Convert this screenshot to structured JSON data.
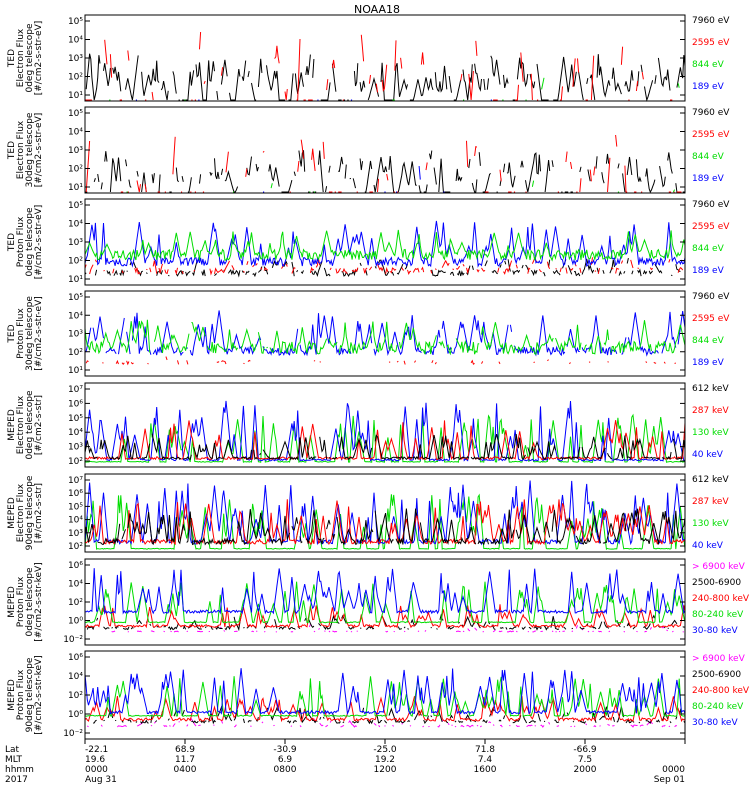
{
  "title": "NOAA18",
  "colors": {
    "black": "#000000",
    "red": "#ff0000",
    "green": "#00dd00",
    "blue": "#0000ff",
    "magenta": "#ff00ff"
  },
  "chart_data": [
    {
      "type": "line",
      "ylabel": [
        "TED",
        "Electron Flux",
        "0deg telescope",
        "[#/cm2-s-str-eV]"
      ],
      "y_ticks": [
        "10¹",
        "10²",
        "10³",
        "10⁴",
        "10⁵"
      ],
      "y_exponents": [
        1,
        5
      ],
      "legend": [
        {
          "label": "7960 eV",
          "color": "#000000"
        },
        {
          "label": "2595 eV",
          "color": "#ff0000"
        },
        {
          "label": "844 eV",
          "color": "#00dd00"
        },
        {
          "label": "189 eV",
          "color": "#0000ff"
        }
      ],
      "series": [
        {
          "color": "#000000",
          "baseline": 1.0,
          "noise": 0.0,
          "spike_count": 130,
          "spike_max": 2.2,
          "gap_fraction": 0.15
        },
        {
          "color": "#ff0000",
          "baseline": 1.0,
          "noise": 0.0,
          "spike_count": 80,
          "spike_max": 3.4,
          "gap_fraction": 0.6
        },
        {
          "color": "#00dd00",
          "baseline": 1.0,
          "noise": 0.0,
          "spike_count": 25,
          "spike_max": 1.5,
          "gap_fraction": 0.85
        },
        {
          "color": "#0000ff",
          "baseline": 1.0,
          "noise": 0.0,
          "spike_count": 12,
          "spike_max": 1.2,
          "gap_fraction": 0.9
        }
      ]
    },
    {
      "type": "line",
      "ylabel": [
        "TED",
        "Electron Flux",
        "30deg telescope",
        "[#/cm2-s-str-eV]"
      ],
      "y_ticks": [
        "10¹",
        "10²",
        "10³",
        "10⁴",
        "10⁵"
      ],
      "y_exponents": [
        1,
        5
      ],
      "legend": [
        {
          "label": "7960 eV",
          "color": "#000000"
        },
        {
          "label": "2595 eV",
          "color": "#ff0000"
        },
        {
          "label": "844 eV",
          "color": "#00dd00"
        },
        {
          "label": "189 eV",
          "color": "#0000ff"
        }
      ],
      "series": [
        {
          "color": "#000000",
          "baseline": 1.0,
          "noise": 0.0,
          "spike_count": 110,
          "spike_max": 2.0,
          "gap_fraction": 0.3
        },
        {
          "color": "#ff0000",
          "baseline": 1.0,
          "noise": 0.0,
          "spike_count": 70,
          "spike_max": 2.8,
          "gap_fraction": 0.6
        },
        {
          "color": "#00dd00",
          "baseline": 1.0,
          "noise": 0.0,
          "spike_count": 20,
          "spike_max": 1.3,
          "gap_fraction": 0.9
        },
        {
          "color": "#0000ff",
          "baseline": 1.0,
          "noise": 0.0,
          "spike_count": 15,
          "spike_max": 1.5,
          "gap_fraction": 0.9
        }
      ]
    },
    {
      "type": "line",
      "ylabel": [
        "TED",
        "Proton Flux",
        "0deg telescope",
        "[#/cm2-s-str-eV]"
      ],
      "y_ticks": [
        "10¹",
        "10²",
        "10³",
        "10⁴",
        "10⁵"
      ],
      "y_exponents": [
        1,
        5
      ],
      "legend": [
        {
          "label": "7960 eV",
          "color": "#000000"
        },
        {
          "label": "2595 eV",
          "color": "#ff0000"
        },
        {
          "label": "844 eV",
          "color": "#00dd00"
        },
        {
          "label": "189 eV",
          "color": "#0000ff"
        }
      ],
      "series": [
        {
          "color": "#000000",
          "baseline": 1.5,
          "noise": 0.3,
          "spike_count": 40,
          "spike_max": 0.8,
          "gap_fraction": 0.3
        },
        {
          "color": "#ff0000",
          "baseline": 1.6,
          "noise": 0.3,
          "spike_count": 30,
          "spike_max": 0.8,
          "gap_fraction": 0.4
        },
        {
          "color": "#0000ff",
          "baseline": 2.0,
          "noise": 0.4,
          "spike_count": 50,
          "spike_max": 2.0,
          "gap_fraction": 0.0
        },
        {
          "color": "#00dd00",
          "baseline": 2.3,
          "noise": 0.5,
          "spike_count": 45,
          "spike_max": 1.3,
          "gap_fraction": 0.0
        }
      ]
    },
    {
      "type": "line",
      "ylabel": [
        "TED",
        "Proton Flux",
        "30deg telescope",
        "[#/cm2-s-str-eV]"
      ],
      "y_ticks": [
        "10¹",
        "10²",
        "10³",
        "10⁴",
        "10⁵"
      ],
      "y_exponents": [
        1,
        5
      ],
      "legend": [
        {
          "label": "7960 eV",
          "color": "#000000"
        },
        {
          "label": "2595 eV",
          "color": "#ff0000"
        },
        {
          "label": "844 eV",
          "color": "#00dd00"
        },
        {
          "label": "189 eV",
          "color": "#0000ff"
        }
      ],
      "series": [
        {
          "color": "#ff0000",
          "baseline": 1.6,
          "noise": 0.2,
          "spike_count": 10,
          "spike_max": 0.6,
          "gap_fraction": 0.7
        },
        {
          "color": "#0000ff",
          "baseline": 2.1,
          "noise": 0.4,
          "spike_count": 55,
          "spike_max": 2.0,
          "gap_fraction": 0.05
        },
        {
          "color": "#00dd00",
          "baseline": 2.2,
          "noise": 0.6,
          "spike_count": 45,
          "spike_max": 1.5,
          "gap_fraction": 0.05
        }
      ]
    },
    {
      "type": "line",
      "ylabel": [
        "MEPED",
        "Electron Flux",
        "0deg telescope",
        "[#/cm2-s-str]"
      ],
      "y_ticks": [
        "10²",
        "10³",
        "10⁴",
        "10⁵",
        "10⁶",
        "10⁷"
      ],
      "y_exponents": [
        2,
        7
      ],
      "legend": [
        {
          "label": "612 keV",
          "color": "#000000"
        },
        {
          "label": "287 keV",
          "color": "#ff0000"
        },
        {
          "label": "130 keV",
          "color": "#00dd00"
        },
        {
          "label": "40 keV",
          "color": "#0000ff"
        }
      ],
      "series": [
        {
          "color": "#00dd00",
          "baseline": 2.3,
          "noise": 0.05,
          "spike_count": 55,
          "spike_max": 2.8,
          "gap_fraction": 0.0
        },
        {
          "color": "#0000ff",
          "baseline": 2.4,
          "noise": 0.1,
          "spike_count": 60,
          "spike_max": 3.6,
          "gap_fraction": 0.0
        },
        {
          "color": "#ff0000",
          "baseline": 2.5,
          "noise": 0.15,
          "spike_count": 40,
          "spike_max": 2.3,
          "gap_fraction": 0.0
        },
        {
          "color": "#000000",
          "baseline": 2.5,
          "noise": 0.15,
          "spike_count": 60,
          "spike_max": 1.5,
          "gap_fraction": 0.05
        }
      ]
    },
    {
      "type": "line",
      "ylabel": [
        "MEPED",
        "Electron Flux",
        "90deg telescope",
        "[#/cm2-s-str]"
      ],
      "y_ticks": [
        "10²",
        "10³",
        "10⁴",
        "10⁵",
        "10⁶",
        "10⁷"
      ],
      "y_exponents": [
        2,
        7
      ],
      "legend": [
        {
          "label": "612 keV",
          "color": "#000000"
        },
        {
          "label": "287 keV",
          "color": "#ff0000"
        },
        {
          "label": "130 keV",
          "color": "#00dd00"
        },
        {
          "label": "40 keV",
          "color": "#0000ff"
        }
      ],
      "series": [
        {
          "color": "#00dd00",
          "baseline": 2.2,
          "noise": 0.05,
          "spike_count": 60,
          "spike_max": 3.5,
          "gap_fraction": 0.0
        },
        {
          "color": "#0000ff",
          "baseline": 2.6,
          "noise": 0.3,
          "spike_count": 70,
          "spike_max": 4.0,
          "gap_fraction": 0.0
        },
        {
          "color": "#ff0000",
          "baseline": 2.6,
          "noise": 0.3,
          "spike_count": 60,
          "spike_max": 2.8,
          "gap_fraction": 0.0
        },
        {
          "color": "#000000",
          "baseline": 2.6,
          "noise": 0.4,
          "spike_count": 80,
          "spike_max": 2.2,
          "gap_fraction": 0.05
        }
      ]
    },
    {
      "type": "line",
      "ylabel": [
        "MEPED",
        "Proton Flux",
        "0deg telescope",
        "[#/cm2-s-str-keV]"
      ],
      "y_ticks": [
        "10⁻²",
        "10⁰",
        "10²",
        "10⁴",
        "10⁶"
      ],
      "y_exponents": [
        -2.2,
        6.2
      ],
      "legend": [
        {
          "label": "> 6900 keV",
          "color": "#ff00ff"
        },
        {
          "label": "2500-6900",
          "color": "#000000"
        },
        {
          "label": "240-800 keV",
          "color": "#ff0000"
        },
        {
          "label": "80-240 keV",
          "color": "#00dd00"
        },
        {
          "label": "30-80 keV",
          "color": "#0000ff"
        }
      ],
      "series": [
        {
          "color": "#ff00ff",
          "baseline": -0.9,
          "noise": 0.1,
          "spike_count": 25,
          "spike_max": 0.7,
          "gap_fraction": 0.5
        },
        {
          "color": "#000000",
          "baseline": -0.6,
          "noise": 0.3,
          "spike_count": 40,
          "spike_max": 1.4,
          "gap_fraction": 0.3
        },
        {
          "color": "#ff0000",
          "baseline": -0.4,
          "noise": 0.25,
          "spike_count": 45,
          "spike_max": 2.2,
          "gap_fraction": 0.0
        },
        {
          "color": "#00dd00",
          "baseline": 0.0,
          "noise": 0.1,
          "spike_count": 60,
          "spike_max": 4.0,
          "gap_fraction": 0.0
        },
        {
          "color": "#0000ff",
          "baseline": 1.0,
          "noise": 0.3,
          "spike_count": 60,
          "spike_max": 4.3,
          "gap_fraction": 0.0
        }
      ]
    },
    {
      "type": "line",
      "ylabel": [
        "MEPED",
        "Proton Flux",
        "90deg telescope",
        "[#/cm2-s-str-keV]"
      ],
      "y_ticks": [
        "10⁻²",
        "10⁰",
        "10²",
        "10⁴",
        "10⁶"
      ],
      "y_exponents": [
        -2.2,
        6.2
      ],
      "legend": [
        {
          "label": "> 6900 keV",
          "color": "#ff00ff"
        },
        {
          "label": "2500-6900",
          "color": "#000000"
        },
        {
          "label": "240-800 keV",
          "color": "#ff0000"
        },
        {
          "label": "80-240 keV",
          "color": "#00dd00"
        },
        {
          "label": "30-80 keV",
          "color": "#0000ff"
        }
      ],
      "series": [
        {
          "color": "#ff00ff",
          "baseline": -1.0,
          "noise": 0.2,
          "spike_count": 30,
          "spike_max": 0.9,
          "gap_fraction": 0.5
        },
        {
          "color": "#000000",
          "baseline": -0.6,
          "noise": 0.3,
          "spike_count": 45,
          "spike_max": 1.6,
          "gap_fraction": 0.3
        },
        {
          "color": "#ff0000",
          "baseline": -0.4,
          "noise": 0.3,
          "spike_count": 50,
          "spike_max": 2.3,
          "gap_fraction": 0.0
        },
        {
          "color": "#00dd00",
          "baseline": 0.0,
          "noise": 0.1,
          "spike_count": 60,
          "spike_max": 3.8,
          "gap_fraction": 0.0
        },
        {
          "color": "#0000ff",
          "baseline": 0.3,
          "noise": 0.3,
          "spike_count": 60,
          "spike_max": 4.3,
          "gap_fraction": 0.0
        }
      ]
    }
  ],
  "x_axis": {
    "row_labels": [
      "Lat",
      "MLT",
      "hhmm",
      "2017"
    ],
    "ticks": [
      {
        "lat": "-22.1",
        "mlt": "19.6",
        "hhmm": "0000",
        "date": "Aug 31"
      },
      {
        "lat": "68.9",
        "mlt": "11.7",
        "hhmm": "0400",
        "date": ""
      },
      {
        "lat": "-30.9",
        "mlt": "6.9",
        "hhmm": "0800",
        "date": ""
      },
      {
        "lat": "-25.0",
        "mlt": "19.2",
        "hhmm": "1200",
        "date": ""
      },
      {
        "lat": "71.8",
        "mlt": "7.4",
        "hhmm": "1600",
        "date": ""
      },
      {
        "lat": "-66.9",
        "mlt": "7.5",
        "hhmm": "2000",
        "date": ""
      },
      {
        "lat": "",
        "mlt": "",
        "hhmm": "0000",
        "date": "Sep 01"
      }
    ]
  }
}
